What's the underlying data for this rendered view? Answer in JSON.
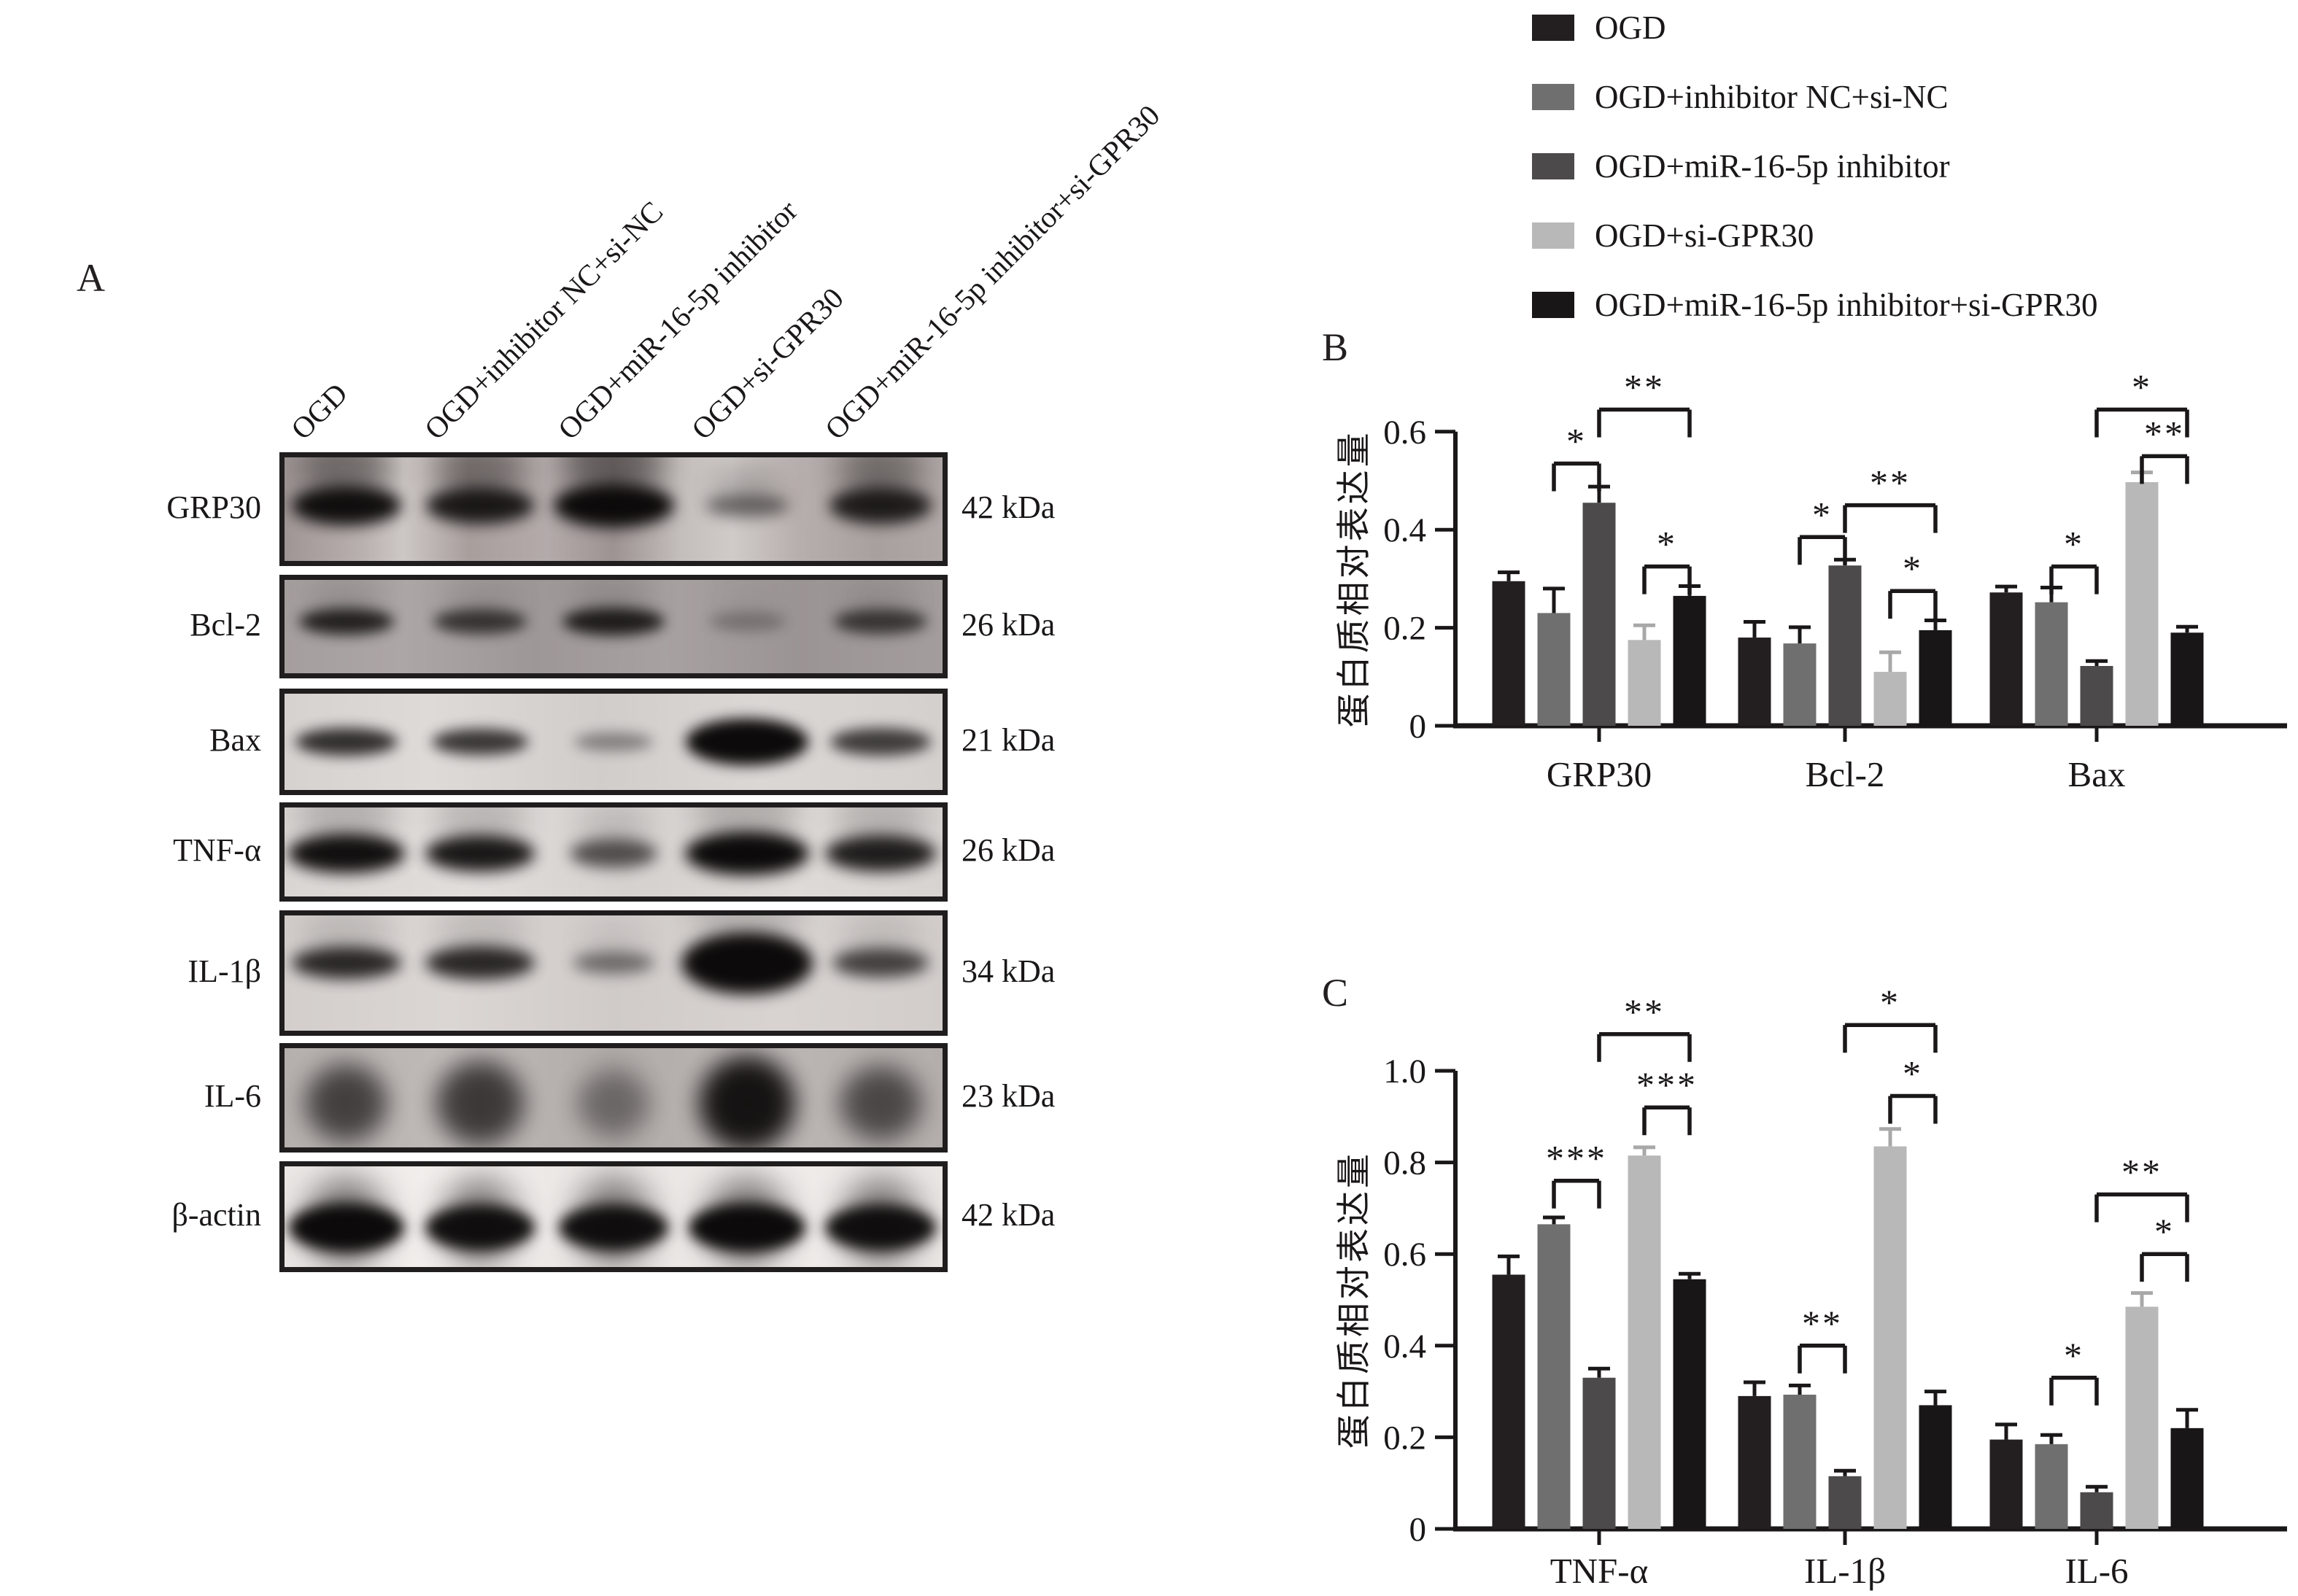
{
  "figure": {
    "panel_a_label": "A",
    "panel_b_label": "B",
    "panel_c_label": "C"
  },
  "legend": {
    "items": [
      {
        "label": "OGD",
        "color": "#231f20"
      },
      {
        "label": "OGD+inhibitor NC+si-NC",
        "color": "#706f6f"
      },
      {
        "label": "OGD+miR-16-5p inhibitor",
        "color": "#4c4a4b"
      },
      {
        "label": "OGD+si-GPR30",
        "color": "#b9b8b8"
      },
      {
        "label": "OGD+miR-16-5p inhibitor+si-GPR30",
        "color": "#191617"
      }
    ]
  },
  "western_blot": {
    "lane_labels": [
      "OGD",
      "OGD+inhibitor NC+si-NC",
      "OGD+miR-16-5p inhibitor",
      "OGD+si-GPR30",
      "OGD+miR-16-5p inhibitor+si-GPR30"
    ],
    "rows": [
      {
        "protein": "GRP30",
        "kda": "42 kDa",
        "band_intensity": [
          0.97,
          0.9,
          1.0,
          0.5,
          0.88
        ],
        "band_width": [
          150,
          148,
          165,
          115,
          140
        ],
        "band_height": [
          54,
          50,
          60,
          30,
          50
        ],
        "smear": "up",
        "smear_strength": 0.42,
        "bg": "linear-gradient(90deg,#9e9594 0%,#b9b1af 12%,#cdc7c5 18%,#a89f9d 28%,#b3abaa 40%,#9c9392 50%,#c3bdbb 60%,#d0cbc9 68%,#b7afad 78%,#a8a09e 90%,#b0a8a6 100%)"
      },
      {
        "protein": "Bcl-2",
        "kda": "26 kDa",
        "band_intensity": [
          0.85,
          0.72,
          0.88,
          0.28,
          0.7
        ],
        "band_width": [
          130,
          128,
          140,
          105,
          128
        ],
        "band_height": [
          36,
          34,
          38,
          26,
          34
        ],
        "smear": "up",
        "smear_strength": 0.15,
        "bg": "linear-gradient(90deg,#a59e9e,#ada6a6 18%,#9e9797 38%,#a8a1a1 58%,#9b9494 78%,#a49d9d)"
      },
      {
        "protein": "Bax",
        "kda": "21 kDa",
        "band_intensity": [
          0.82,
          0.78,
          0.4,
          1.0,
          0.75
        ],
        "band_width": [
          140,
          132,
          108,
          168,
          138
        ],
        "band_height": [
          38,
          36,
          26,
          64,
          38
        ],
        "smear": "none",
        "smear_strength": 0,
        "bg": "linear-gradient(90deg,#d6d2d0,#dedad8 22%,#d1cdcb 48%,#dbd7d5 72%,#d4d0ce)"
      },
      {
        "protein": "TNF-α",
        "kda": "26 kDa",
        "band_intensity": [
          0.97,
          0.93,
          0.65,
          1.0,
          0.9
        ],
        "band_width": [
          160,
          150,
          120,
          170,
          152
        ],
        "band_height": [
          54,
          50,
          40,
          60,
          50
        ],
        "smear": "up",
        "smear_strength": 0.2,
        "bg": "linear-gradient(90deg,#d9d5d3,#e1dddb 28%,#d5d1cf 52%,#dddad7 78%,#d7d3d1)"
      },
      {
        "protein": "IL-1β",
        "kda": "34 kDa",
        "band_intensity": [
          0.85,
          0.85,
          0.5,
          1.0,
          0.72
        ],
        "band_width": [
          150,
          150,
          112,
          180,
          132
        ],
        "band_height": [
          44,
          46,
          30,
          85,
          40
        ],
        "smear": "up",
        "smear_strength": 0.15,
        "bg": "linear-gradient(90deg,#d3cecc,#dbd6d4 25%,#d0cbc9 50%,#d8d3d1 75%,#d2cdcb)"
      },
      {
        "protein": "IL-6",
        "kda": "23 kDa",
        "band_intensity": [
          0.6,
          0.65,
          0.35,
          0.92,
          0.55
        ],
        "band_width": [
          112,
          120,
          100,
          130,
          112
        ],
        "band_height": [
          100,
          110,
          85,
          125,
          95
        ],
        "smear": "vertical",
        "smear_strength": 0.35,
        "bg": "linear-gradient(90deg,#b5afad,#bfb9b7 25%,#b1aba9 50%,#bbb5b3 75%,#b3adab)"
      },
      {
        "protein": "β-actin",
        "kda": "42 kDa",
        "band_intensity": [
          1.0,
          0.97,
          0.97,
          1.0,
          0.97
        ],
        "band_width": [
          158,
          150,
          150,
          160,
          152
        ],
        "band_height": [
          66,
          62,
          62,
          66,
          62
        ],
        "smear": "vertical",
        "smear_strength": 0.5,
        "bg": "linear-gradient(90deg,#eae7e5,#f2efed 25%,#e7e4e2 50%,#efecea 75%,#e9e6e4)"
      }
    ]
  },
  "chart_data": [
    {
      "type": "bar",
      "panel": "B",
      "title": "",
      "xlabel": "",
      "ylabel": "蛋白质相对表达量",
      "categories": [
        "GRP30",
        "Bcl-2",
        "Bax"
      ],
      "ylim": [
        0,
        0.6
      ],
      "yticks": [
        "0",
        "0.2",
        "0.4",
        "0.6"
      ],
      "grid": false,
      "legend_position": "top-right",
      "series": [
        {
          "name": "OGD",
          "color": "#231f20",
          "values": [
            0.295,
            0.18,
            0.272
          ],
          "errors": [
            0.018,
            0.032,
            0.012
          ]
        },
        {
          "name": "OGD+inhibitor NC+si-NC",
          "color": "#706f6f",
          "values": [
            0.23,
            0.168,
            0.252
          ],
          "errors": [
            0.05,
            0.033,
            0.03
          ]
        },
        {
          "name": "OGD+miR-16-5p inhibitor",
          "color": "#4c4a4b",
          "values": [
            0.455,
            0.327,
            0.122
          ],
          "errors": [
            0.033,
            0.012,
            0.01
          ]
        },
        {
          "name": "OGD+si-GPR30",
          "color": "#b9b8b8",
          "values": [
            0.175,
            0.11,
            0.497
          ],
          "errors": [
            0.03,
            0.04,
            0.02
          ]
        },
        {
          "name": "OGD+miR-16-5p inhibitor+si-GPR30",
          "color": "#191617",
          "values": [
            0.265,
            0.195,
            0.19
          ],
          "errors": [
            0.02,
            0.02,
            0.012
          ]
        }
      ],
      "significance": [
        {
          "category": 0,
          "from": 1,
          "to": 2,
          "label": "*",
          "y": 0.535
        },
        {
          "category": 0,
          "from": 2,
          "to": 4,
          "label": "**",
          "y": 0.645
        },
        {
          "category": 0,
          "from": 3,
          "to": 4,
          "label": "*",
          "y": 0.325
        },
        {
          "category": 1,
          "from": 1,
          "to": 2,
          "label": "*",
          "y": 0.385
        },
        {
          "category": 1,
          "from": 2,
          "to": 4,
          "label": "**",
          "y": 0.45
        },
        {
          "category": 1,
          "from": 3,
          "to": 4,
          "label": "*",
          "y": 0.275
        },
        {
          "category": 2,
          "from": 1,
          "to": 2,
          "label": "*",
          "y": 0.325
        },
        {
          "category": 2,
          "from": 2,
          "to": 4,
          "label": "*",
          "y": 0.645
        },
        {
          "category": 2,
          "from": 3,
          "to": 4,
          "label": "**",
          "y": 0.55
        }
      ]
    },
    {
      "type": "bar",
      "panel": "C",
      "title": "",
      "xlabel": "",
      "ylabel": "蛋白质相对表达量",
      "categories": [
        "TNF-α",
        "IL-1β",
        "IL-6"
      ],
      "ylim": [
        0,
        1.0
      ],
      "yticks": [
        "0",
        "0.2",
        "0.4",
        "0.6",
        "0.8",
        "1.0"
      ],
      "grid": false,
      "legend_position": "top-right",
      "series": [
        {
          "name": "OGD",
          "color": "#231f20",
          "values": [
            0.555,
            0.29,
            0.195
          ],
          "errors": [
            0.04,
            0.03,
            0.033
          ]
        },
        {
          "name": "OGD+inhibitor NC+si-NC",
          "color": "#706f6f",
          "values": [
            0.665,
            0.293,
            0.185
          ],
          "errors": [
            0.015,
            0.02,
            0.02
          ]
        },
        {
          "name": "OGD+miR-16-5p inhibitor",
          "color": "#4c4a4b",
          "values": [
            0.33,
            0.115,
            0.08
          ],
          "errors": [
            0.02,
            0.012,
            0.012
          ]
        },
        {
          "name": "OGD+si-GPR30",
          "color": "#b9b8b8",
          "values": [
            0.815,
            0.835,
            0.485
          ],
          "errors": [
            0.018,
            0.038,
            0.03
          ]
        },
        {
          "name": "OGD+miR-16-5p inhibitor+si-GPR30",
          "color": "#191617",
          "values": [
            0.545,
            0.27,
            0.22
          ],
          "errors": [
            0.012,
            0.03,
            0.04
          ]
        }
      ],
      "significance": [
        {
          "category": 0,
          "from": 1,
          "to": 2,
          "label": "***",
          "y": 0.76
        },
        {
          "category": 0,
          "from": 2,
          "to": 4,
          "label": "**",
          "y": 1.08
        },
        {
          "category": 0,
          "from": 3,
          "to": 4,
          "label": "***",
          "y": 0.92
        },
        {
          "category": 1,
          "from": 1,
          "to": 2,
          "label": "**",
          "y": 0.4
        },
        {
          "category": 1,
          "from": 2,
          "to": 4,
          "label": "*",
          "y": 1.1
        },
        {
          "category": 1,
          "from": 3,
          "to": 4,
          "label": "*",
          "y": 0.945
        },
        {
          "category": 2,
          "from": 1,
          "to": 2,
          "label": "*",
          "y": 0.33
        },
        {
          "category": 2,
          "from": 2,
          "to": 4,
          "label": "**",
          "y": 0.73
        },
        {
          "category": 2,
          "from": 3,
          "to": 4,
          "label": "*",
          "y": 0.6
        }
      ]
    }
  ]
}
